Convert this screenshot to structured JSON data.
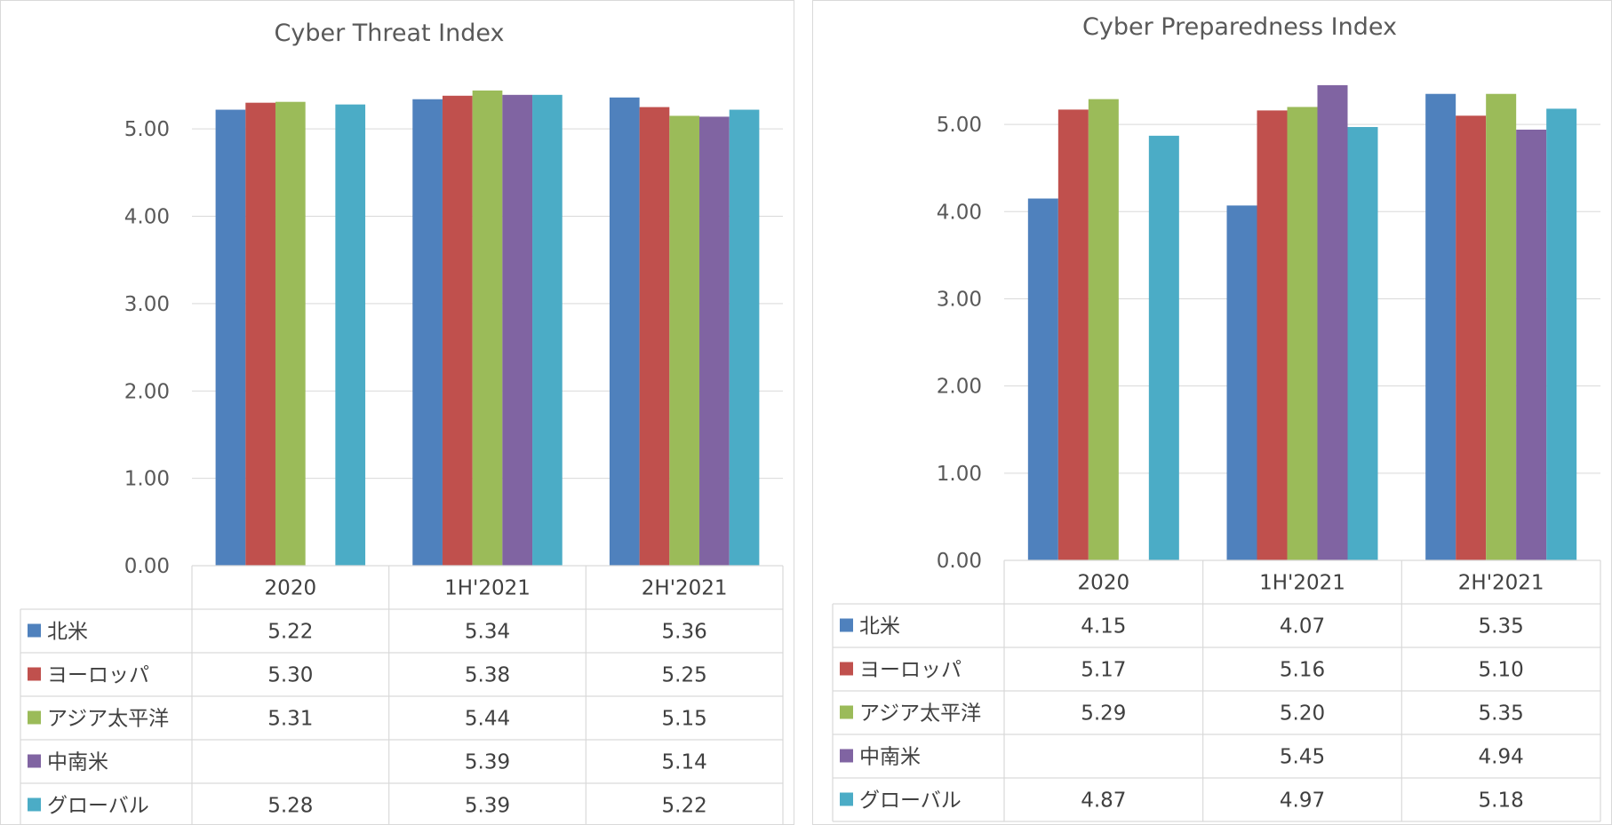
{
  "palette": {
    "north_america": "#4f81bd",
    "europe": "#c0504d",
    "asia_pacific": "#9bbb59",
    "latin_america": "#8064a2",
    "global": "#4bacc6"
  },
  "chart_data": [
    {
      "type": "bar",
      "title": "Cyber Threat Index",
      "categories": [
        "2020",
        "1H'2021",
        "2H'2021"
      ],
      "ylim": [
        0,
        5.5
      ],
      "yticks": [
        "0.00",
        "1.00",
        "2.00",
        "3.00",
        "4.00",
        "5.00"
      ],
      "grid": true,
      "legend": "data-table-below",
      "series": [
        {
          "name": "北米",
          "color": "#4f81bd",
          "values": [
            5.22,
            5.34,
            5.36
          ],
          "labels": [
            "5.22",
            "5.34",
            "5.36"
          ]
        },
        {
          "name": "ヨーロッパ",
          "color": "#c0504d",
          "values": [
            5.3,
            5.38,
            5.25
          ],
          "labels": [
            "5.30",
            "5.38",
            "5.25"
          ]
        },
        {
          "name": "アジア太平洋",
          "color": "#9bbb59",
          "values": [
            5.31,
            5.44,
            5.15
          ],
          "labels": [
            "5.31",
            "5.44",
            "5.15"
          ]
        },
        {
          "name": "中南米",
          "color": "#8064a2",
          "values": [
            null,
            5.39,
            5.14
          ],
          "labels": [
            "",
            "5.39",
            "5.14"
          ]
        },
        {
          "name": "グローバル",
          "color": "#4bacc6",
          "values": [
            5.28,
            5.39,
            5.22
          ],
          "labels": [
            "5.28",
            "5.39",
            "5.22"
          ]
        }
      ]
    },
    {
      "type": "bar",
      "title": "Cyber Preparedness Index",
      "categories": [
        "2020",
        "1H'2021",
        "2H'2021"
      ],
      "ylim": [
        0,
        5.5
      ],
      "yticks": [
        "0.00",
        "1.00",
        "2.00",
        "3.00",
        "4.00",
        "5.00"
      ],
      "grid": true,
      "legend": "data-table-below",
      "series": [
        {
          "name": "北米",
          "color": "#4f81bd",
          "values": [
            4.15,
            4.07,
            5.35
          ],
          "labels": [
            "4.15",
            "4.07",
            "5.35"
          ]
        },
        {
          "name": "ヨーロッパ",
          "color": "#c0504d",
          "values": [
            5.17,
            5.16,
            5.1
          ],
          "labels": [
            "5.17",
            "5.16",
            "5.10"
          ]
        },
        {
          "name": "アジア太平洋",
          "color": "#9bbb59",
          "values": [
            5.29,
            5.2,
            5.35
          ],
          "labels": [
            "5.29",
            "5.20",
            "5.35"
          ]
        },
        {
          "name": "中南米",
          "color": "#8064a2",
          "values": [
            null,
            5.45,
            4.94
          ],
          "labels": [
            "",
            "5.45",
            "4.94"
          ]
        },
        {
          "name": "グローバル",
          "color": "#4bacc6",
          "values": [
            4.87,
            4.97,
            5.18
          ],
          "labels": [
            "4.87",
            "4.97",
            "5.18"
          ]
        }
      ]
    }
  ]
}
